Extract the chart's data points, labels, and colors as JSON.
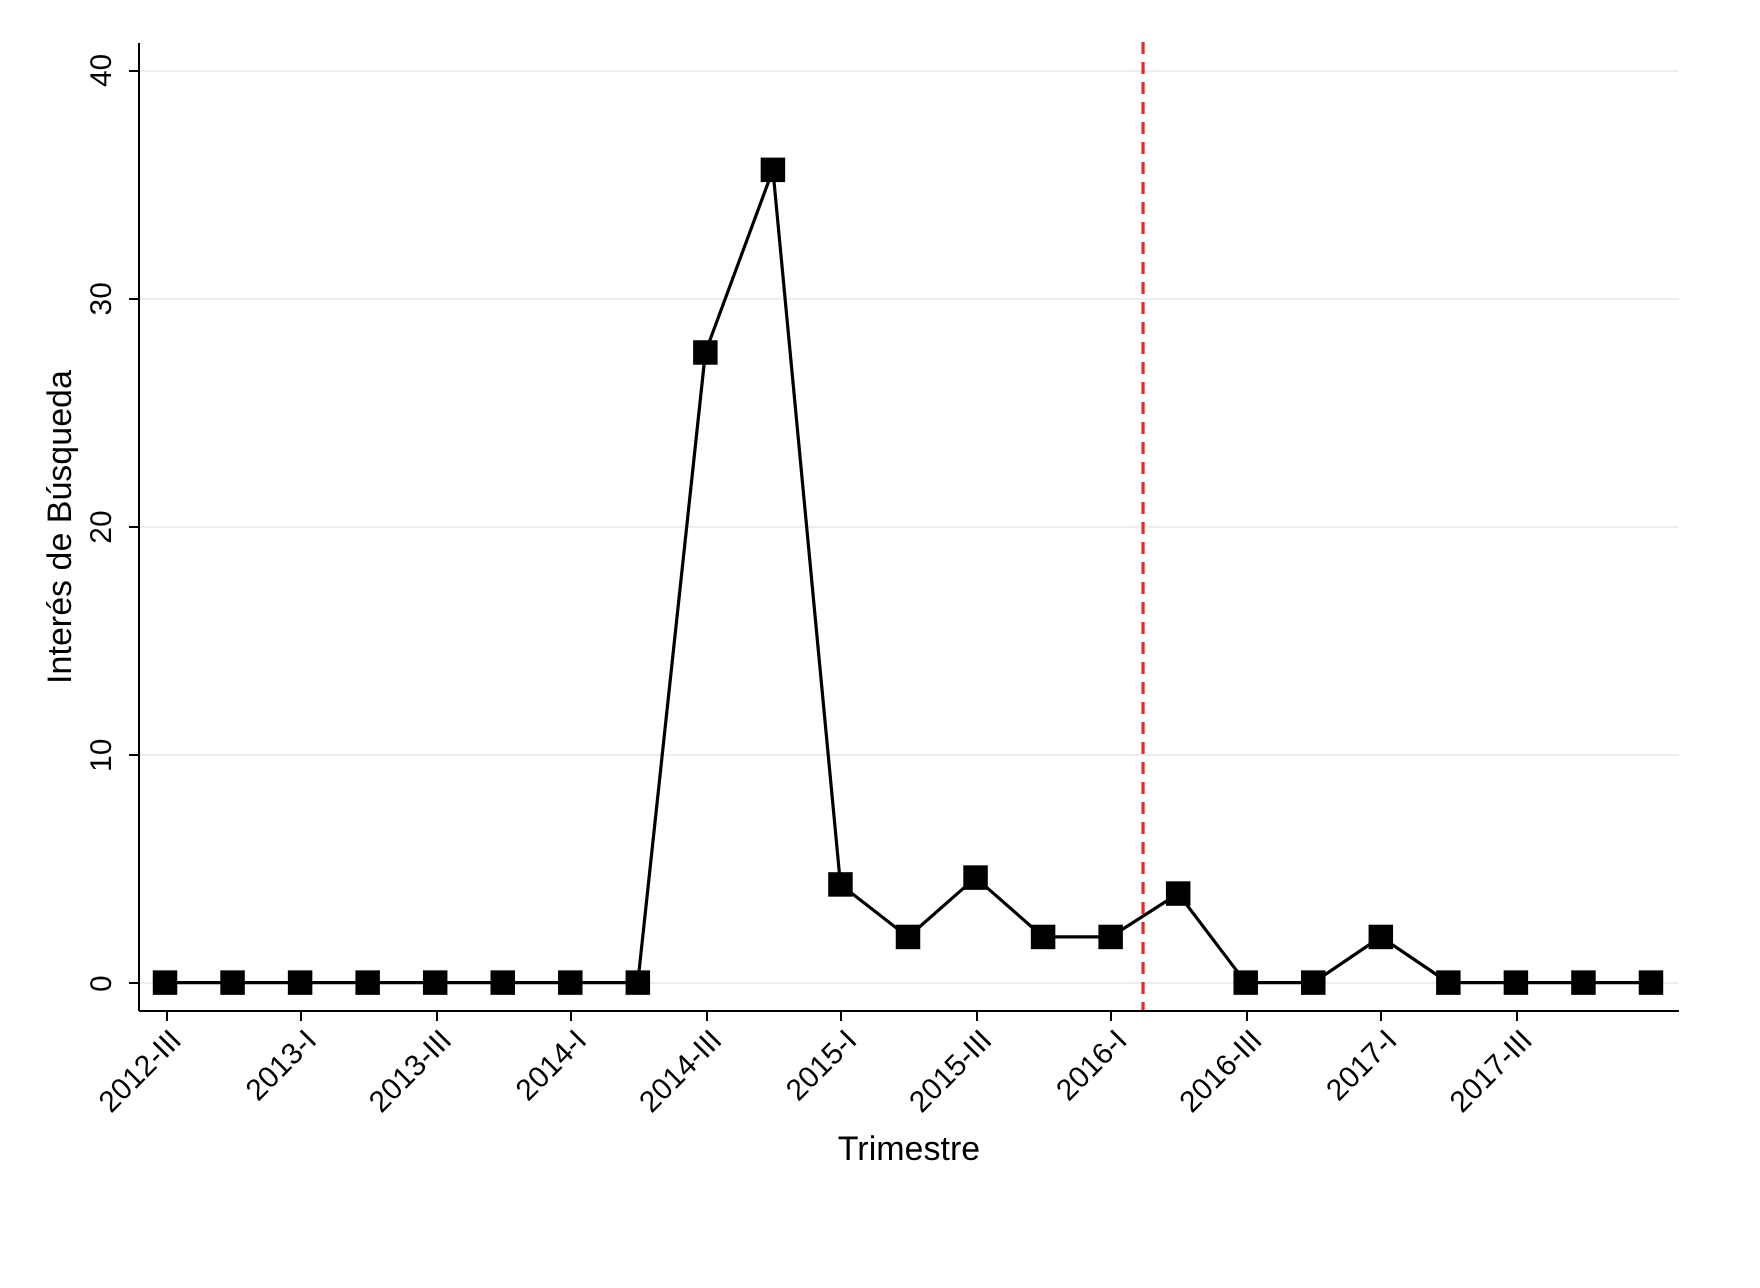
{
  "chart_data": {
    "type": "line",
    "xlabel": "Trimestre",
    "ylabel": "Interés de Búsqueda",
    "x": [
      2012.5,
      2012.75,
      2013.0,
      2013.25,
      2013.5,
      2013.75,
      2014.0,
      2014.25,
      2014.5,
      2014.75,
      2015.0,
      2015.25,
      2015.5,
      2015.75,
      2016.0,
      2016.25,
      2016.5,
      2016.75,
      2017.0,
      2017.25,
      2017.5,
      2017.75,
      2018.0
    ],
    "series": [
      {
        "color": "#000000",
        "values": [
          0,
          0,
          0,
          0,
          0,
          0,
          0,
          0,
          27.6,
          35.6,
          4.3,
          2,
          4.6,
          2,
          2,
          3.9,
          0,
          0,
          2,
          0,
          0,
          0,
          0
        ]
      }
    ],
    "xlim": [
      2012.4,
      2018.1
    ],
    "ylim": [
      -1.2,
      41.2
    ],
    "xticks": [
      {
        "value": 2012.5,
        "label": "2012-III"
      },
      {
        "value": 2013.0,
        "label": "2013-I"
      },
      {
        "value": 2013.5,
        "label": "2013-III"
      },
      {
        "value": 2014.0,
        "label": "2014-I"
      },
      {
        "value": 2014.5,
        "label": "2014-III"
      },
      {
        "value": 2015.0,
        "label": "2015-I"
      },
      {
        "value": 2015.5,
        "label": "2015-III"
      },
      {
        "value": 2016.0,
        "label": "2016-I"
      },
      {
        "value": 2016.5,
        "label": "2016-III"
      },
      {
        "value": 2017.0,
        "label": "2017-I"
      },
      {
        "value": 2017.5,
        "label": "2017-III"
      }
    ],
    "yticks": [
      0,
      10,
      20,
      30,
      40
    ],
    "ref_lines": [
      {
        "axis": "x",
        "value": 2016.12,
        "color": "#e8262b",
        "line_style": "dashed"
      }
    ],
    "grid": "y",
    "marker": "square",
    "line_style": "solid"
  }
}
